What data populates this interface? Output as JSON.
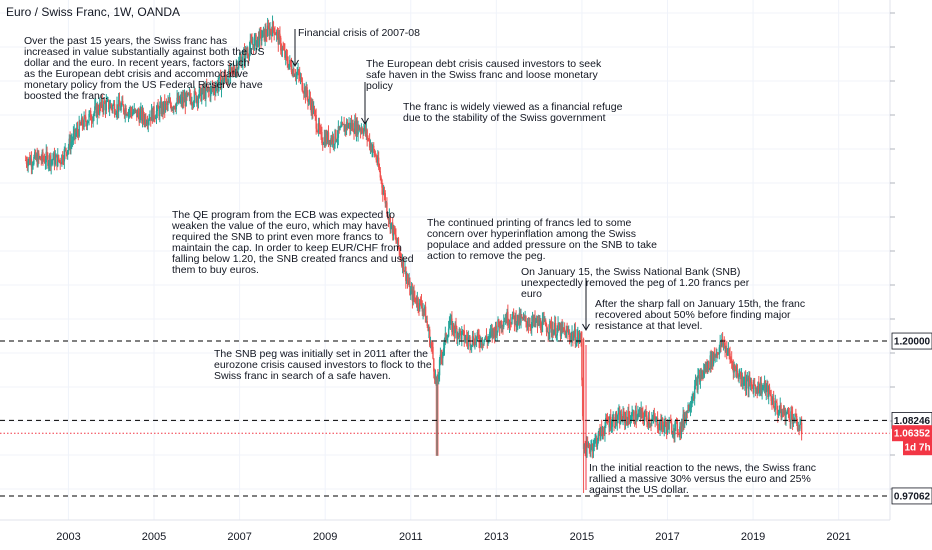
{
  "title": "Euro / Swiss Franc, 1W, OANDA",
  "chart_data": {
    "type": "candlestick",
    "instrument": "Euro / Swiss Franc",
    "interval": "1W",
    "source": "OANDA",
    "x_ticks": [
      "2003",
      "2005",
      "2007",
      "2009",
      "2011",
      "2013",
      "2015",
      "2017",
      "2019",
      "2021"
    ],
    "xlim": [
      2001.4,
      2022.2
    ],
    "ylim": [
      0.935,
      1.705
    ],
    "colors": {
      "up": "#26a69a",
      "down": "#ef5350",
      "current": "#f23645",
      "level": "#000000"
    },
    "price_series": [
      [
        2002.0,
        1.468
      ],
      [
        2002.5,
        1.47
      ],
      [
        2002.8,
        1.468
      ],
      [
        2003.3,
        1.52
      ],
      [
        2003.8,
        1.55
      ],
      [
        2004.3,
        1.545
      ],
      [
        2004.8,
        1.53
      ],
      [
        2005.3,
        1.548
      ],
      [
        2005.8,
        1.558
      ],
      [
        2006.3,
        1.57
      ],
      [
        2006.8,
        1.595
      ],
      [
        2007.3,
        1.64
      ],
      [
        2007.8,
        1.665
      ],
      [
        2008.1,
        1.615
      ],
      [
        2008.4,
        1.59
      ],
      [
        2008.7,
        1.545
      ],
      [
        2008.9,
        1.5
      ],
      [
        2009.2,
        1.5
      ],
      [
        2009.5,
        1.52
      ],
      [
        2009.9,
        1.515
      ],
      [
        2010.2,
        1.47
      ],
      [
        2010.5,
        1.38
      ],
      [
        2010.8,
        1.32
      ],
      [
        2011.0,
        1.27
      ],
      [
        2011.3,
        1.25
      ],
      [
        2011.5,
        1.185
      ],
      [
        2011.6,
        1.13
      ],
      [
        2011.7,
        1.175
      ],
      [
        2011.9,
        1.225
      ],
      [
        2012.3,
        1.202
      ],
      [
        2012.8,
        1.203
      ],
      [
        2013.2,
        1.235
      ],
      [
        2013.6,
        1.23
      ],
      [
        2014.0,
        1.225
      ],
      [
        2014.5,
        1.215
      ],
      [
        2014.98,
        1.203
      ],
      [
        2015.04,
        1.035
      ],
      [
        2015.3,
        1.05
      ],
      [
        2015.6,
        1.08
      ],
      [
        2015.9,
        1.085
      ],
      [
        2016.4,
        1.09
      ],
      [
        2016.9,
        1.075
      ],
      [
        2017.3,
        1.07
      ],
      [
        2017.7,
        1.14
      ],
      [
        2018.0,
        1.17
      ],
      [
        2018.3,
        1.198
      ],
      [
        2018.6,
        1.155
      ],
      [
        2018.9,
        1.135
      ],
      [
        2019.3,
        1.13
      ],
      [
        2019.6,
        1.095
      ],
      [
        2019.9,
        1.09
      ],
      [
        2020.15,
        1.065
      ]
    ],
    "horizontal_levels": [
      {
        "value": 1.2,
        "label": "1.20000",
        "style": "dashed",
        "color": "#000000"
      },
      {
        "value": 1.08246,
        "label": "1.08246",
        "style": "dashed",
        "color": "#000000"
      },
      {
        "value": 1.06352,
        "label": "1.06352",
        "style": "dotted",
        "color": "#f23645",
        "current": true
      },
      {
        "value": 0.97062,
        "label": "0.97062",
        "style": "dashed",
        "color": "#000000"
      }
    ],
    "countdown": "1d 7h",
    "annotations": [
      {
        "lines": [
          "Over the past 15 years, the Swiss franc has",
          "increased in value substantially against both the US",
          "dollar and the euro. In recent years, factors such",
          "as the European debt crisis and accommodative",
          "monetary policy from the US Federal Reserve have",
          "boosted the franc."
        ]
      },
      {
        "lines": [
          "Financial crisis of 2007-08"
        ]
      },
      {
        "lines": [
          "The European debt crisis caused investors to seek",
          "safe haven in the Swiss franc and loose monetary",
          "policy"
        ]
      },
      {
        "lines": [
          "The franc is widely viewed as a financial refuge",
          "due to the stability of the Swiss government"
        ]
      },
      {
        "lines": [
          "The QE program from the ECB was expected to",
          "weaken the value of the euro, which may have",
          "required the SNB to print even more francs to",
          "maintain the cap. In order to keep EUR/CHF from",
          "falling below 1.20, the SNB created francs and used",
          "them to buy euros."
        ]
      },
      {
        "lines": [
          "The continued printing of francs led to some",
          "concern over hyperinflation among the Swiss",
          "populace and added pressure on the SNB to take",
          "action to remove the peg."
        ]
      },
      {
        "lines": [
          "On January 15, the Swiss National Bank (SNB)",
          "unexpectedly removed the peg of 1.20 francs per",
          "euro"
        ]
      },
      {
        "lines": [
          "After the sharp fall on January 15th, the franc",
          "recovered about 50% before finding major",
          "resistance at that level."
        ]
      },
      {
        "lines": [
          "The SNB peg was initially set in 2011 after the",
          "eurozone crisis caused investors to flock to the",
          "Swiss franc in search of a safe haven."
        ]
      },
      {
        "lines": [
          "In the initial reaction to the news, the Swiss franc",
          "rallied a massive 30% versus the euro and 25%",
          "against the US dollar."
        ]
      }
    ]
  }
}
